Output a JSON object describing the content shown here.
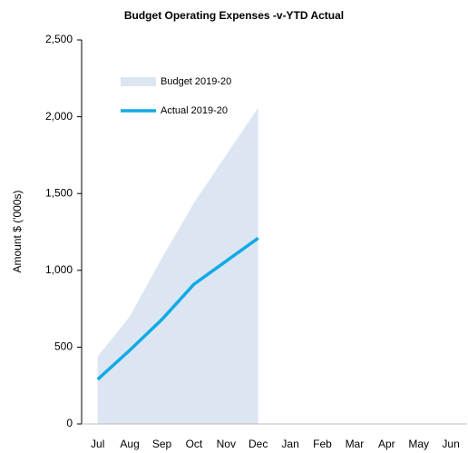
{
  "chart_data": {
    "type": "area",
    "title": "Budget Operating Expenses -v-YTD Actual",
    "ylabel": "Amount $ ('000s)",
    "categories": [
      "Jul",
      "Aug",
      "Sep",
      "Oct",
      "Nov",
      "Dec",
      "Jan",
      "Feb",
      "Mar",
      "Apr",
      "May",
      "Jun"
    ],
    "series": [
      {
        "name": "Budget 2019-20",
        "type": "area",
        "color": "#dce6f2",
        "values": [
          440,
          700,
          1080,
          1440,
          1750,
          2060,
          null,
          null,
          null,
          null,
          null,
          null
        ]
      },
      {
        "name": "Actual 2019-20",
        "type": "line",
        "color": "#10aae6",
        "values": [
          290,
          480,
          680,
          910,
          1060,
          1210,
          null,
          null,
          null,
          null,
          null,
          null
        ]
      }
    ],
    "ylim": [
      0,
      2500
    ],
    "yticks": [
      0,
      500,
      {
        "value": 1000,
        "label": "1,000"
      },
      {
        "value": 1500,
        "label": "1,500"
      },
      {
        "value": 2000,
        "label": "2,000"
      },
      {
        "value": 2500,
        "label": "2,500"
      }
    ],
    "grid": false,
    "legend": "upper left"
  }
}
